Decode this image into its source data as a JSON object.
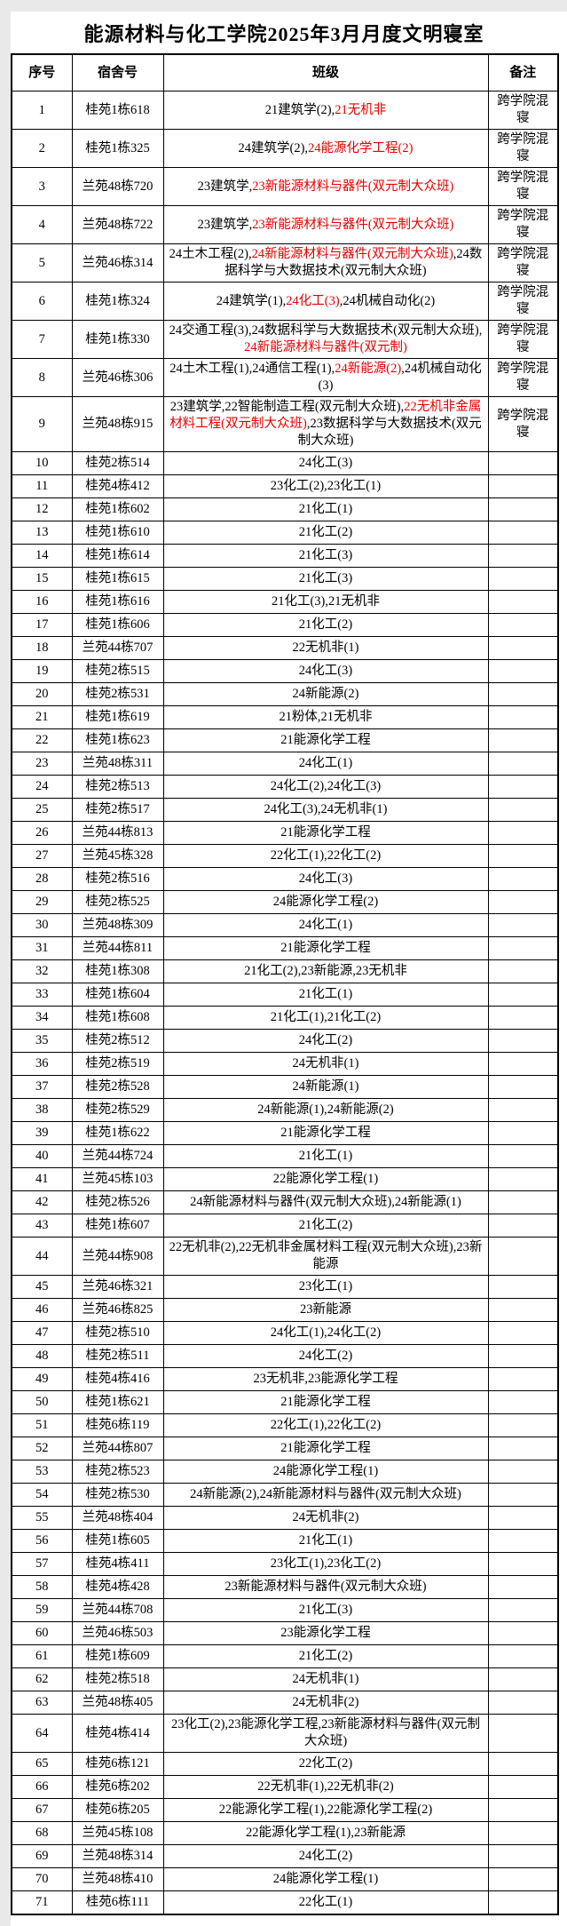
{
  "title": "能源材料与化工学院2025年3月月度文明寝室",
  "columns": [
    "序号",
    "宿舍号",
    "班级",
    "备注"
  ],
  "colors": {
    "red": "#e60000",
    "text": "#000000",
    "border": "#000000"
  },
  "note_cross_college": "跨学院混寝",
  "rows": [
    {
      "no": "1",
      "dorm": "桂苑1栋618",
      "cls": [
        {
          "t": "21建筑学(2),"
        },
        {
          "t": "21无机非",
          "red": true
        }
      ],
      "note": "跨学院混寝"
    },
    {
      "no": "2",
      "dorm": "桂苑1栋325",
      "cls": [
        {
          "t": "24建筑学(2),"
        },
        {
          "t": "24能源化学工程(2)",
          "red": true
        }
      ],
      "note": "跨学院混寝"
    },
    {
      "no": "3",
      "dorm": "兰苑48栋720",
      "cls": [
        {
          "t": "23建筑学,"
        },
        {
          "t": "23新能源材料与器件(双元制大众班)",
          "red": true
        }
      ],
      "note": "跨学院混寝"
    },
    {
      "no": "4",
      "dorm": "兰苑48栋722",
      "cls": [
        {
          "t": "23建筑学,"
        },
        {
          "t": "23新能源材料与器件(双元制大众班)",
          "red": true
        }
      ],
      "note": "跨学院混寝"
    },
    {
      "no": "5",
      "dorm": "兰苑46栋314",
      "cls": [
        {
          "t": "24土木工程(2),"
        },
        {
          "t": "24新能源材料与器件(双元制大众班)",
          "red": true
        },
        {
          "t": ",24数据科学与大数据技术(双元制大众班)"
        }
      ],
      "note": "跨学院混寝"
    },
    {
      "no": "6",
      "dorm": "桂苑1栋324",
      "cls": [
        {
          "t": "24建筑学(1),"
        },
        {
          "t": "24化工(3)",
          "red": true
        },
        {
          "t": ",24机械自动化(2)"
        }
      ],
      "note": "跨学院混寝"
    },
    {
      "no": "7",
      "dorm": "桂苑1栋330",
      "cls": [
        {
          "t": "24交通工程(3),24数据科学与大数据技术(双元制大众班),"
        },
        {
          "t": "24新能源材料与器件(双元制)",
          "red": true
        }
      ],
      "note": "跨学院混寝"
    },
    {
      "no": "8",
      "dorm": "兰苑46栋306",
      "cls": [
        {
          "t": "24土木工程(1),24通信工程(1),"
        },
        {
          "t": "24新能源(2)",
          "red": true
        },
        {
          "t": ",24机械自动化(3)"
        }
      ],
      "note": "跨学院混寝"
    },
    {
      "no": "9",
      "dorm": "兰苑48栋915",
      "cls": [
        {
          "t": "23建筑学,22智能制造工程(双元制大众班),"
        },
        {
          "t": "22无机非金属材料工程(双元制大众班)",
          "red": true
        },
        {
          "t": ",23数据科学与大数据技术(双元制大众班)"
        }
      ],
      "note": "跨学院混寝"
    },
    {
      "no": "10",
      "dorm": "桂苑2栋514",
      "cls": [
        {
          "t": "24化工(3)"
        }
      ],
      "note": ""
    },
    {
      "no": "11",
      "dorm": "桂苑4栋412",
      "cls": [
        {
          "t": "23化工(2),23化工(1)"
        }
      ],
      "note": ""
    },
    {
      "no": "12",
      "dorm": "桂苑1栋602",
      "cls": [
        {
          "t": "21化工(1)"
        }
      ],
      "note": ""
    },
    {
      "no": "13",
      "dorm": "桂苑1栋610",
      "cls": [
        {
          "t": "21化工(2)"
        }
      ],
      "note": ""
    },
    {
      "no": "14",
      "dorm": "桂苑1栋614",
      "cls": [
        {
          "t": "21化工(3)"
        }
      ],
      "note": ""
    },
    {
      "no": "15",
      "dorm": "桂苑1栋615",
      "cls": [
        {
          "t": "21化工(3)"
        }
      ],
      "note": ""
    },
    {
      "no": "16",
      "dorm": "桂苑1栋616",
      "cls": [
        {
          "t": "21化工(3),21无机非"
        }
      ],
      "note": ""
    },
    {
      "no": "17",
      "dorm": "桂苑1栋606",
      "cls": [
        {
          "t": "21化工(2)"
        }
      ],
      "note": ""
    },
    {
      "no": "18",
      "dorm": "兰苑44栋707",
      "cls": [
        {
          "t": "22无机非(1)"
        }
      ],
      "note": ""
    },
    {
      "no": "19",
      "dorm": "桂苑2栋515",
      "cls": [
        {
          "t": "24化工(3)"
        }
      ],
      "note": ""
    },
    {
      "no": "20",
      "dorm": "桂苑2栋531",
      "cls": [
        {
          "t": "24新能源(2)"
        }
      ],
      "note": ""
    },
    {
      "no": "21",
      "dorm": "桂苑1栋619",
      "cls": [
        {
          "t": "21粉体,21无机非"
        }
      ],
      "note": ""
    },
    {
      "no": "22",
      "dorm": "桂苑1栋623",
      "cls": [
        {
          "t": "21能源化学工程"
        }
      ],
      "note": ""
    },
    {
      "no": "23",
      "dorm": "兰苑48栋311",
      "cls": [
        {
          "t": "24化工(1)"
        }
      ],
      "note": ""
    },
    {
      "no": "24",
      "dorm": "桂苑2栋513",
      "cls": [
        {
          "t": "24化工(2),24化工(3)"
        }
      ],
      "note": ""
    },
    {
      "no": "25",
      "dorm": "桂苑2栋517",
      "cls": [
        {
          "t": "24化工(3),24无机非(1)"
        }
      ],
      "note": ""
    },
    {
      "no": "26",
      "dorm": "兰苑44栋813",
      "cls": [
        {
          "t": "21能源化学工程"
        }
      ],
      "note": ""
    },
    {
      "no": "27",
      "dorm": "兰苑45栋328",
      "cls": [
        {
          "t": "22化工(1),22化工(2)"
        }
      ],
      "note": ""
    },
    {
      "no": "28",
      "dorm": "桂苑2栋516",
      "cls": [
        {
          "t": "24化工(3)"
        }
      ],
      "note": ""
    },
    {
      "no": "29",
      "dorm": "桂苑2栋525",
      "cls": [
        {
          "t": "24能源化学工程(2)"
        }
      ],
      "note": ""
    },
    {
      "no": "30",
      "dorm": "兰苑48栋309",
      "cls": [
        {
          "t": "24化工(1)"
        }
      ],
      "note": ""
    },
    {
      "no": "31",
      "dorm": "兰苑44栋811",
      "cls": [
        {
          "t": "21能源化学工程"
        }
      ],
      "note": ""
    },
    {
      "no": "32",
      "dorm": "桂苑1栋308",
      "cls": [
        {
          "t": "21化工(2),23新能源,23无机非"
        }
      ],
      "note": ""
    },
    {
      "no": "33",
      "dorm": "桂苑1栋604",
      "cls": [
        {
          "t": "21化工(1)"
        }
      ],
      "note": ""
    },
    {
      "no": "34",
      "dorm": "桂苑1栋608",
      "cls": [
        {
          "t": "21化工(1),21化工(2)"
        }
      ],
      "note": ""
    },
    {
      "no": "35",
      "dorm": "桂苑2栋512",
      "cls": [
        {
          "t": "24化工(2)"
        }
      ],
      "note": ""
    },
    {
      "no": "36",
      "dorm": "桂苑2栋519",
      "cls": [
        {
          "t": "24无机非(1)"
        }
      ],
      "note": ""
    },
    {
      "no": "37",
      "dorm": "桂苑2栋528",
      "cls": [
        {
          "t": "24新能源(1)"
        }
      ],
      "note": ""
    },
    {
      "no": "38",
      "dorm": "桂苑2栋529",
      "cls": [
        {
          "t": "24新能源(1),24新能源(2)"
        }
      ],
      "note": ""
    },
    {
      "no": "39",
      "dorm": "桂苑1栋622",
      "cls": [
        {
          "t": "21能源化学工程"
        }
      ],
      "note": ""
    },
    {
      "no": "40",
      "dorm": "兰苑44栋724",
      "cls": [
        {
          "t": "21化工(1)"
        }
      ],
      "note": ""
    },
    {
      "no": "41",
      "dorm": "兰苑45栋103",
      "cls": [
        {
          "t": "22能源化学工程(1)"
        }
      ],
      "note": ""
    },
    {
      "no": "42",
      "dorm": "桂苑2栋526",
      "cls": [
        {
          "t": "24新能源材料与器件(双元制大众班),24新能源(1)"
        }
      ],
      "note": ""
    },
    {
      "no": "43",
      "dorm": "桂苑1栋607",
      "cls": [
        {
          "t": "21化工(2)"
        }
      ],
      "note": ""
    },
    {
      "no": "44",
      "dorm": "兰苑44栋908",
      "cls": [
        {
          "t": "22无机非(2),22无机非金属材料工程(双元制大众班),23新能源"
        }
      ],
      "note": ""
    },
    {
      "no": "45",
      "dorm": "兰苑46栋321",
      "cls": [
        {
          "t": "23化工(1)"
        }
      ],
      "note": ""
    },
    {
      "no": "46",
      "dorm": "兰苑46栋825",
      "cls": [
        {
          "t": "23新能源"
        }
      ],
      "note": ""
    },
    {
      "no": "47",
      "dorm": "桂苑2栋510",
      "cls": [
        {
          "t": "24化工(1),24化工(2)"
        }
      ],
      "note": ""
    },
    {
      "no": "48",
      "dorm": "桂苑2栋511",
      "cls": [
        {
          "t": "24化工(2)"
        }
      ],
      "note": ""
    },
    {
      "no": "49",
      "dorm": "桂苑4栋416",
      "cls": [
        {
          "t": "23无机非,23能源化学工程"
        }
      ],
      "note": ""
    },
    {
      "no": "50",
      "dorm": "桂苑1栋621",
      "cls": [
        {
          "t": "21能源化学工程"
        }
      ],
      "note": ""
    },
    {
      "no": "51",
      "dorm": "桂苑6栋119",
      "cls": [
        {
          "t": "22化工(1),22化工(2)"
        }
      ],
      "note": ""
    },
    {
      "no": "52",
      "dorm": "兰苑44栋807",
      "cls": [
        {
          "t": "21能源化学工程"
        }
      ],
      "note": ""
    },
    {
      "no": "53",
      "dorm": "桂苑2栋523",
      "cls": [
        {
          "t": "24能源化学工程(1)"
        }
      ],
      "note": ""
    },
    {
      "no": "54",
      "dorm": "桂苑2栋530",
      "cls": [
        {
          "t": "24新能源(2),24新能源材料与器件(双元制大众班)"
        }
      ],
      "note": ""
    },
    {
      "no": "55",
      "dorm": "兰苑48栋404",
      "cls": [
        {
          "t": "24无机非(2)"
        }
      ],
      "note": ""
    },
    {
      "no": "56",
      "dorm": "桂苑1栋605",
      "cls": [
        {
          "t": "21化工(1)"
        }
      ],
      "note": ""
    },
    {
      "no": "57",
      "dorm": "桂苑4栋411",
      "cls": [
        {
          "t": "23化工(1),23化工(2)"
        }
      ],
      "note": ""
    },
    {
      "no": "58",
      "dorm": "桂苑4栋428",
      "cls": [
        {
          "t": "23新能源材料与器件(双元制大众班)"
        }
      ],
      "note": ""
    },
    {
      "no": "59",
      "dorm": "兰苑44栋708",
      "cls": [
        {
          "t": "21化工(3)"
        }
      ],
      "note": ""
    },
    {
      "no": "60",
      "dorm": "兰苑46栋503",
      "cls": [
        {
          "t": "23能源化学工程"
        }
      ],
      "note": ""
    },
    {
      "no": "61",
      "dorm": "桂苑1栋609",
      "cls": [
        {
          "t": "21化工(2)"
        }
      ],
      "note": ""
    },
    {
      "no": "62",
      "dorm": "桂苑2栋518",
      "cls": [
        {
          "t": "24无机非(1)"
        }
      ],
      "note": ""
    },
    {
      "no": "63",
      "dorm": "兰苑48栋405",
      "cls": [
        {
          "t": "24无机非(2)"
        }
      ],
      "note": ""
    },
    {
      "no": "64",
      "dorm": "桂苑4栋414",
      "cls": [
        {
          "t": "23化工(2),23能源化学工程,23新能源材料与器件(双元制大众班)"
        }
      ],
      "note": ""
    },
    {
      "no": "65",
      "dorm": "桂苑6栋121",
      "cls": [
        {
          "t": "22化工(2)"
        }
      ],
      "note": ""
    },
    {
      "no": "66",
      "dorm": "桂苑6栋202",
      "cls": [
        {
          "t": "22无机非(1),22无机非(2)"
        }
      ],
      "note": ""
    },
    {
      "no": "67",
      "dorm": "桂苑6栋205",
      "cls": [
        {
          "t": "22能源化学工程(1),22能源化学工程(2)"
        }
      ],
      "note": ""
    },
    {
      "no": "68",
      "dorm": "兰苑45栋108",
      "cls": [
        {
          "t": "22能源化学工程(1),23新能源"
        }
      ],
      "note": ""
    },
    {
      "no": "69",
      "dorm": "兰苑48栋314",
      "cls": [
        {
          "t": "24化工(2)"
        }
      ],
      "note": ""
    },
    {
      "no": "70",
      "dorm": "兰苑48栋410",
      "cls": [
        {
          "t": "24能源化学工程(1)"
        }
      ],
      "note": ""
    },
    {
      "no": "71",
      "dorm": "桂苑6栋111",
      "cls": [
        {
          "t": "22化工(1)"
        }
      ],
      "note": ""
    }
  ]
}
